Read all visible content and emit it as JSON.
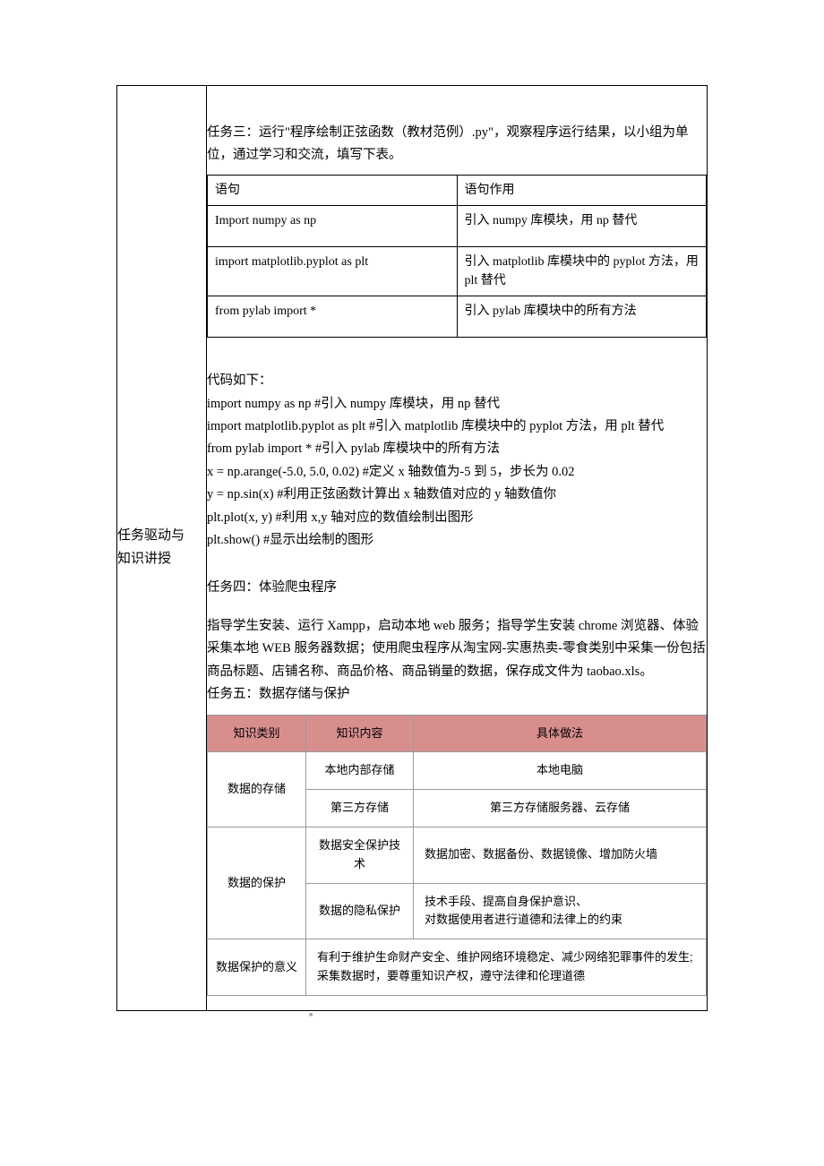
{
  "leftColumn": {
    "line1": "任务驱动与",
    "line2": "知识讲授"
  },
  "task3": {
    "intro": "任务三：运行\"程序绘制正弦函数（教材范例）.py\"，观察程序运行结果，以小组为单位，通过学习和交流，填写下表。"
  },
  "table1": {
    "headerLeft": "语句",
    "headerRight": "语句作用",
    "rows": [
      {
        "left": "Import numpy as np",
        "right": "引入 numpy 库模块，用 np 替代"
      },
      {
        "left": "import matplotlib.pyplot as plt",
        "right": "引入 matplotlib 库模块中的 pyplot 方法，用 plt 替代"
      },
      {
        "left": "from pylab import *",
        "right": "引入 pylab 库模块中的所有方法"
      }
    ]
  },
  "code": {
    "title": "代码如下：",
    "lines": [
      "import numpy as np    #引入 numpy 库模块，用 np 替代",
      "import matplotlib.pyplot as plt    #引入 matplotlib 库模块中的 pyplot 方法，用 plt 替代",
      "from pylab import *      #引入 pylab 库模块中的所有方法",
      "x = np.arange(-5.0, 5.0, 0.02)      #定义 x 轴数值为-5 到 5，步长为 0.02",
      "y = np.sin(x)      #利用正弦函数计算出 x 轴数值对应的 y 轴数值你",
      "plt.plot(x, y)        #利用 x,y 轴对应的数值绘制出图形",
      "plt.show()     #显示出绘制的图形"
    ]
  },
  "task4": {
    "title": "任务四：体验爬虫程序",
    "desc": "指导学生安装、运行 Xampp，启动本地 web 服务；指导学生安装 chrome 浏览器、体验采集本地 WEB 服务器数据；使用爬虫程序从淘宝网-实惠热卖-零食类别中采集一份包括商品标题、店铺名称、商品价格、商品销量的数据，保存成文件为 taobao.xls。"
  },
  "task5": {
    "title": "任务五：数据存储与保护"
  },
  "table2": {
    "headers": {
      "c1": "知识类别",
      "c2": "知识内容",
      "c3": "具体做法"
    },
    "storage": {
      "label": "数据的存储",
      "rows": [
        {
          "content": "本地内部存储",
          "method": "本地电脑"
        },
        {
          "content": "第三方存储",
          "method": "第三方存储服务器、云存储"
        }
      ]
    },
    "protect": {
      "label": "数据的保护",
      "rows": [
        {
          "content": "数据安全保护技术",
          "method": "数据加密、数据备份、数据镜像、增加防火墙"
        },
        {
          "content": "数据的隐私保护",
          "method": "技术手段、提高自身保护意识、\n对数据使用者进行道德和法律上的约束"
        }
      ]
    },
    "meaning": {
      "label": "数据保护的意义",
      "method": "有利于维护生命财产安全、维护网络环境稳定、减少网络犯罪事件的发生;\n采集数据时，要尊重知识产权，遵守法律和伦理道德"
    },
    "colors": {
      "headerBg": "#d98e8e",
      "border": "#9a9a9a"
    }
  },
  "pageMarker": "■"
}
